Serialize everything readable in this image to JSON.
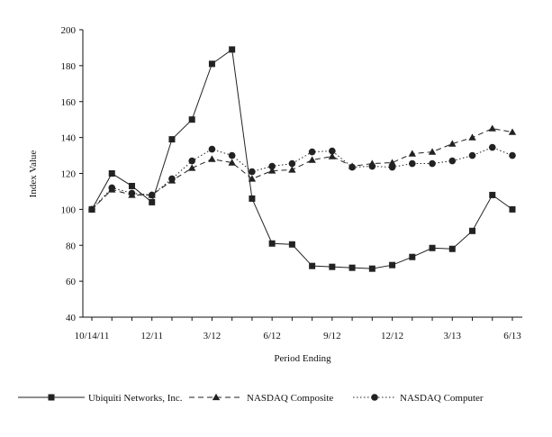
{
  "chart_data": {
    "type": "line",
    "title": "",
    "xlabel": "Period Ending",
    "ylabel": "Index Value",
    "ylim": [
      40,
      200
    ],
    "yticks": [
      40,
      60,
      80,
      100,
      120,
      140,
      160,
      180,
      200
    ],
    "x_tick_labels": [
      {
        "index": 0,
        "label": "10/14/11"
      },
      {
        "index": 3,
        "label": "12/11"
      },
      {
        "index": 6,
        "label": "3/12"
      },
      {
        "index": 9,
        "label": "6/12"
      },
      {
        "index": 12,
        "label": "9/12"
      },
      {
        "index": 15,
        "label": "12/12"
      },
      {
        "index": 18,
        "label": "3/13"
      },
      {
        "index": 21,
        "label": "6/13"
      }
    ],
    "grid": false,
    "legend_position": "bottom",
    "series": [
      {
        "name": "Ubiquiti Networks, Inc.",
        "line_style": "solid",
        "marker": "square",
        "values": [
          100,
          120,
          113,
          104,
          139,
          150,
          181,
          189,
          106,
          81,
          80.5,
          68.5,
          68,
          67.5,
          67,
          69,
          73.5,
          78.5,
          78,
          88,
          108,
          100
        ]
      },
      {
        "name": "NASDAQ Composite",
        "line_style": "dashed",
        "marker": "triangle",
        "values": [
          100,
          111,
          108,
          108,
          116,
          123,
          128,
          126,
          117,
          121.5,
          122,
          127.5,
          129.5,
          124,
          125.5,
          126,
          131,
          132,
          136.5,
          140,
          145,
          143
        ]
      },
      {
        "name": "NASDAQ Computer",
        "line_style": "dotted",
        "marker": "circle",
        "values": [
          100,
          112,
          109,
          108,
          117,
          127,
          133.5,
          130,
          121,
          124,
          125.5,
          132,
          132.5,
          123.5,
          124,
          123.5,
          125.5,
          125.5,
          127,
          130,
          134.5,
          130
        ]
      }
    ]
  }
}
